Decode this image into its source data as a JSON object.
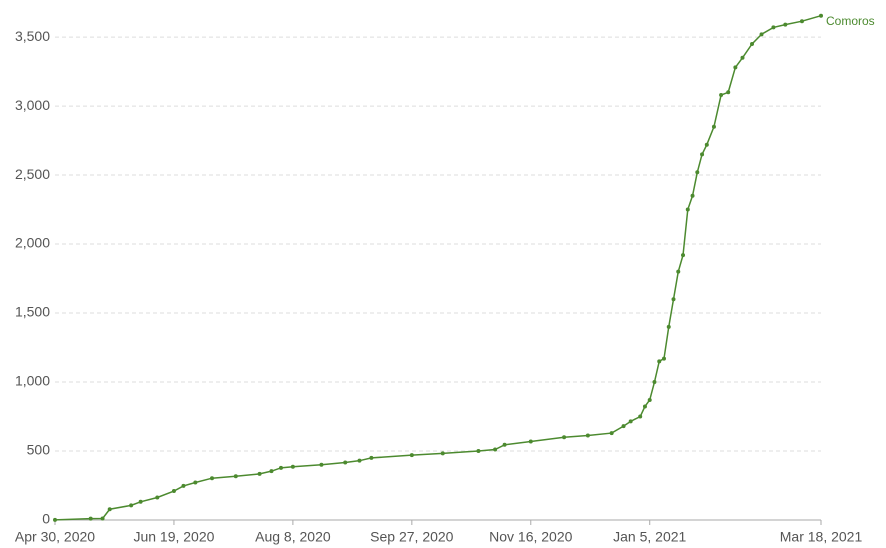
{
  "chart_data": {
    "type": "line",
    "x": [
      "2020-04-30",
      "2020-05-15",
      "2020-05-20",
      "2020-05-23",
      "2020-06-01",
      "2020-06-05",
      "2020-06-12",
      "2020-06-19",
      "2020-06-23",
      "2020-06-28",
      "2020-07-05",
      "2020-07-15",
      "2020-07-25",
      "2020-07-30",
      "2020-08-03",
      "2020-08-08",
      "2020-08-20",
      "2020-08-30",
      "2020-09-05",
      "2020-09-10",
      "2020-09-27",
      "2020-10-10",
      "2020-10-25",
      "2020-11-01",
      "2020-11-05",
      "2020-11-16",
      "2020-11-30",
      "2020-12-10",
      "2020-12-20",
      "2020-12-25",
      "2020-12-28",
      "2021-01-01",
      "2021-01-03",
      "2021-01-05",
      "2021-01-07",
      "2021-01-09",
      "2021-01-11",
      "2021-01-13",
      "2021-01-15",
      "2021-01-17",
      "2021-01-19",
      "2021-01-21",
      "2021-01-23",
      "2021-01-25",
      "2021-01-27",
      "2021-01-29",
      "2021-02-01",
      "2021-02-04",
      "2021-02-07",
      "2021-02-10",
      "2021-02-13",
      "2021-02-17",
      "2021-02-21",
      "2021-02-26",
      "2021-03-03",
      "2021-03-10",
      "2021-03-18"
    ],
    "series": [
      {
        "name": "Comoros",
        "color": "#4c8a2f",
        "values": [
          1,
          10,
          11,
          78,
          106,
          132,
          163,
          210,
          247,
          272,
          303,
          317,
          334,
          354,
          378,
          386,
          400,
          417,
          430,
          450,
          470,
          483,
          500,
          511,
          545,
          569,
          600,
          612,
          630,
          680,
          715,
          750,
          823,
          870,
          1000,
          1150,
          1170,
          1400,
          1600,
          1800,
          1920,
          2250,
          2350,
          2520,
          2650,
          2720,
          2850,
          3080,
          3100,
          3280,
          3350,
          3450,
          3520,
          3570,
          3590,
          3615,
          3655
        ]
      }
    ],
    "xlim": [
      "2020-04-30",
      "2021-03-18"
    ],
    "xticks": [
      {
        "value": "2020-04-30",
        "label": "Apr 30, 2020"
      },
      {
        "value": "2020-06-19",
        "label": "Jun 19, 2020"
      },
      {
        "value": "2020-08-08",
        "label": "Aug 8, 2020"
      },
      {
        "value": "2020-09-27",
        "label": "Sep 27, 2020"
      },
      {
        "value": "2020-11-16",
        "label": "Nov 16, 2020"
      },
      {
        "value": "2021-01-05",
        "label": "Jan 5, 2021"
      },
      {
        "value": "2021-03-18",
        "label": "Mar 18, 2021"
      }
    ],
    "ylim": [
      0,
      3660
    ],
    "yticks": [
      0,
      500,
      {
        "value": 1000,
        "label": "1,000"
      },
      {
        "value": 1500,
        "label": "1,500"
      },
      {
        "value": 2000,
        "label": "2,000"
      },
      {
        "value": 2500,
        "label": "2,500"
      },
      {
        "value": 3000,
        "label": "3,000"
      },
      {
        "value": 3500,
        "label": "3,500"
      }
    ],
    "grid": true
  }
}
